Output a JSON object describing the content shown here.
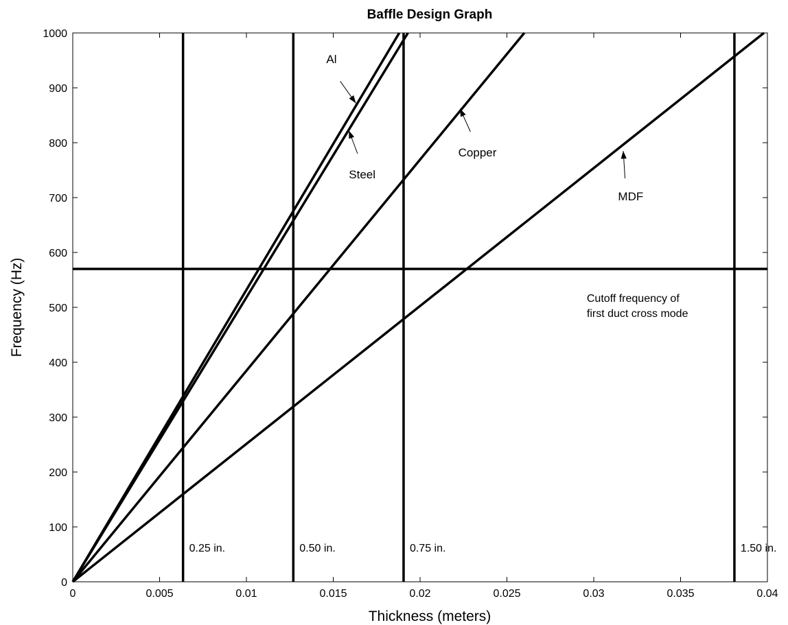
{
  "chart_data": {
    "type": "line",
    "title": "Baffle Design Graph",
    "xlabel": "Thickness (meters)",
    "ylabel": "Frequency (Hz)",
    "xlim": [
      0,
      0.04
    ],
    "ylim": [
      0,
      1000
    ],
    "xticks": [
      0,
      0.005,
      0.01,
      0.015,
      0.02,
      0.025,
      0.03,
      0.035,
      0.04
    ],
    "xtick_labels": [
      "0",
      "0.005",
      "0.01",
      "0.015",
      "0.02",
      "0.025",
      "0.03",
      "0.035",
      "0.04"
    ],
    "yticks": [
      0,
      100,
      200,
      300,
      400,
      500,
      600,
      700,
      800,
      900,
      1000
    ],
    "ytick_labels": [
      "0",
      "100",
      "200",
      "300",
      "400",
      "500",
      "600",
      "700",
      "800",
      "900",
      "1000"
    ],
    "grid": false,
    "series": [
      {
        "name": "Al",
        "x": [
          0,
          0.0188
        ],
        "y": [
          0,
          1000
        ]
      },
      {
        "name": "Steel",
        "x": [
          0,
          0.0193
        ],
        "y": [
          0,
          1000
        ]
      },
      {
        "name": "Copper",
        "x": [
          0,
          0.026
        ],
        "y": [
          0,
          1000
        ]
      },
      {
        "name": "MDF",
        "x": [
          0,
          0.0398
        ],
        "y": [
          0,
          1000
        ]
      }
    ],
    "cutoff_frequency": {
      "y": 570,
      "label_lines": [
        "Cutoff frequency of",
        "first duct cross mode"
      ]
    },
    "thickness_lines": [
      {
        "x": 0.00635,
        "label": "0.25 in."
      },
      {
        "x": 0.0127,
        "label": "0.50 in."
      },
      {
        "x": 0.01905,
        "label": "0.75 in."
      },
      {
        "x": 0.0381,
        "label": "1.50 in."
      }
    ],
    "annotations": [
      {
        "text": "Al",
        "text_at": [
          0.0146,
          945
        ],
        "arrow_from": [
          0.0154,
          912
        ],
        "arrow_to": [
          0.0163,
          872
        ]
      },
      {
        "text": "Steel",
        "text_at": [
          0.0159,
          735
        ],
        "arrow_from": [
          0.0164,
          780
        ],
        "arrow_to": [
          0.0159,
          822
        ]
      },
      {
        "text": "Copper",
        "text_at": [
          0.0222,
          775
        ],
        "arrow_from": [
          0.0229,
          820
        ],
        "arrow_to": [
          0.0223,
          862
        ]
      },
      {
        "text": "MDF",
        "text_at": [
          0.0314,
          695
        ],
        "arrow_from": [
          0.0318,
          735
        ],
        "arrow_to": [
          0.0317,
          785
        ]
      }
    ]
  }
}
